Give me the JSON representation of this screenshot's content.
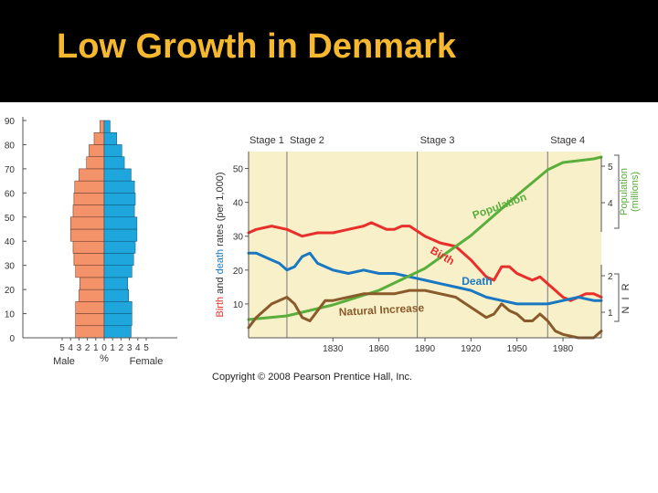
{
  "slide": {
    "title": "Low Growth in Denmark"
  },
  "colors": {
    "title": "#f5b82e",
    "male": "#f4936a",
    "female": "#1fa6dc",
    "panel": "#f8f0c9",
    "birth": "#e82f2c",
    "death": "#1a78c2",
    "population": "#5aae3c",
    "natural_increase": "#8a5a2b"
  },
  "chart_data": [
    {
      "type": "bar",
      "subtype": "population-pyramid",
      "title": "",
      "categories": [
        "0",
        "5",
        "10",
        "15",
        "20",
        "25",
        "30",
        "35",
        "40",
        "45",
        "50",
        "55",
        "60",
        "65",
        "70",
        "75",
        "80",
        "85"
      ],
      "series": [
        {
          "name": "Male",
          "values": [
            3.4,
            3.4,
            3.4,
            3.0,
            2.9,
            3.4,
            3.6,
            3.7,
            4.0,
            4.0,
            3.7,
            3.6,
            3.5,
            3.0,
            2.1,
            1.8,
            1.2,
            0.5
          ]
        },
        {
          "name": "Female",
          "values": [
            3.2,
            3.3,
            3.3,
            2.9,
            2.8,
            3.3,
            3.5,
            3.7,
            3.9,
            3.9,
            3.6,
            3.7,
            3.6,
            3.2,
            2.4,
            2.1,
            1.5,
            0.7
          ]
        }
      ],
      "y_ticks": [
        "0",
        "10",
        "20",
        "30",
        "40",
        "50",
        "60",
        "70",
        "80",
        "90"
      ],
      "x_ticks": [
        "5",
        "4",
        "3",
        "2",
        "1",
        "0",
        "1",
        "2",
        "3",
        "4",
        "5"
      ],
      "x_unit": "%",
      "xlabel_left": "Male",
      "xlabel_right": "Female",
      "ylim": [
        0,
        90
      ],
      "xlim": [
        -5,
        5
      ]
    },
    {
      "type": "line",
      "subtype": "demographic-transition",
      "title": "",
      "x_ticks": [
        1830,
        1860,
        1890,
        1920,
        1950,
        1980
      ],
      "xlim": [
        1775,
        2005
      ],
      "ylabel": "Birth and death rates (per 1,000)",
      "ylabel_parts": [
        "Birth",
        " and ",
        "death",
        " rates (per 1,000)"
      ],
      "y_ticks": [
        10,
        20,
        30,
        40,
        50
      ],
      "ylim": [
        0,
        55
      ],
      "y2label": "Population (millions)",
      "y2label_lines": [
        "Population",
        "(millions)"
      ],
      "y2_ticks": [
        1,
        2,
        4,
        5
      ],
      "y2lim": [
        0.3,
        5.4
      ],
      "nir_label": "N I R",
      "stages": [
        {
          "label": "Stage 1",
          "start": 1775,
          "end": 1800
        },
        {
          "label": "Stage 2",
          "start": 1800,
          "end": 1885
        },
        {
          "label": "Stage 3",
          "start": 1885,
          "end": 1970
        },
        {
          "label": "Stage 4",
          "start": 1970,
          "end": 2005
        }
      ],
      "series": [
        {
          "name": "Birth",
          "axis": "left",
          "label": "Birth",
          "x": [
            1775,
            1780,
            1790,
            1800,
            1805,
            1810,
            1820,
            1830,
            1840,
            1850,
            1855,
            1860,
            1865,
            1870,
            1875,
            1880,
            1890,
            1900,
            1910,
            1920,
            1930,
            1935,
            1940,
            1945,
            1950,
            1955,
            1960,
            1965,
            1970,
            1975,
            1980,
            1985,
            1990,
            1995,
            2000,
            2005
          ],
          "y": [
            31,
            32,
            33,
            32,
            31,
            30,
            31,
            31,
            32,
            33,
            34,
            33,
            32,
            32,
            33,
            33,
            30,
            28,
            27,
            23,
            18,
            17,
            21,
            21,
            19,
            18,
            17,
            18,
            16,
            14,
            12,
            11,
            12,
            13,
            13,
            12
          ]
        },
        {
          "name": "Death",
          "axis": "left",
          "label": "Death",
          "x": [
            1775,
            1780,
            1785,
            1790,
            1795,
            1800,
            1805,
            1810,
            1815,
            1820,
            1825,
            1830,
            1840,
            1850,
            1860,
            1870,
            1880,
            1890,
            1900,
            1910,
            1920,
            1930,
            1940,
            1950,
            1960,
            1970,
            1980,
            1990,
            2000,
            2005
          ],
          "y": [
            25,
            25,
            24,
            23,
            22,
            20,
            21,
            24,
            25,
            22,
            21,
            20,
            19,
            20,
            19,
            19,
            18,
            17,
            16,
            15,
            14,
            12,
            11,
            10,
            10,
            10,
            11,
            12,
            11,
            11
          ]
        },
        {
          "name": "Population",
          "axis": "right",
          "label": "Population",
          "x": [
            1775,
            1800,
            1830,
            1860,
            1890,
            1920,
            1950,
            1970,
            1980,
            1990,
            2000,
            2005
          ],
          "y": [
            0.8,
            0.9,
            1.2,
            1.6,
            2.2,
            3.1,
            4.2,
            4.9,
            5.1,
            5.15,
            5.2,
            5.25
          ]
        },
        {
          "name": "Natural Increase",
          "axis": "left",
          "label": "Natural Increase",
          "x": [
            1775,
            1780,
            1790,
            1800,
            1805,
            1810,
            1815,
            1820,
            1825,
            1830,
            1840,
            1850,
            1860,
            1870,
            1880,
            1890,
            1900,
            1910,
            1920,
            1930,
            1935,
            1940,
            1945,
            1950,
            1955,
            1960,
            1965,
            1970,
            1975,
            1980,
            1990,
            2000,
            2005
          ],
          "y": [
            3,
            6,
            10,
            12,
            10,
            6,
            5,
            8,
            11,
            11,
            12,
            13,
            13,
            13,
            14,
            14,
            13,
            12,
            9,
            6,
            7,
            10,
            8,
            7,
            5,
            5,
            7,
            5,
            2,
            1,
            0,
            0,
            2
          ]
        }
      ],
      "attribution": "Copyright © 2008 Pearson Prentice Hall, Inc."
    }
  ]
}
